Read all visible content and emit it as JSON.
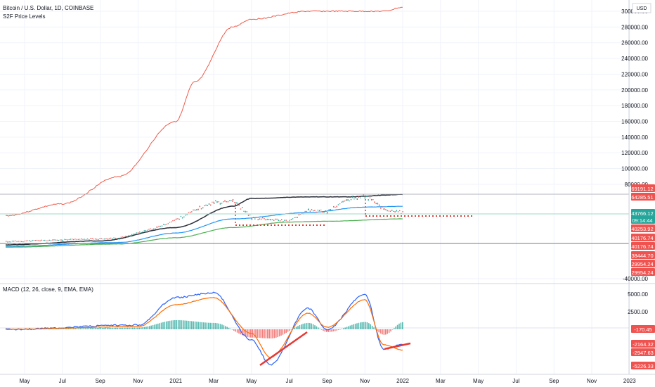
{
  "header": {
    "title": "Bitcoin / U.S. Dollar, 1D, COINBASE",
    "indicator_label": "S2F Price Levels",
    "currency": "USD"
  },
  "macd_header": {
    "label": "MACD (12, 26, close, 9, EMA, EMA)"
  },
  "colors": {
    "s2f": "#f05a4a",
    "black_ma": "#2a2e39",
    "blue_ma": "#2196f3",
    "green_ma": "#4caf50",
    "price_red": "#ef5350",
    "price_green": "#26a69a",
    "macd_line": "#2962ff",
    "signal_line": "#ff6d00",
    "hist_pos": "#26a69a",
    "hist_neg": "#ef5350",
    "grid": "#f0f3fa"
  },
  "chart_data": [
    {
      "type": "line",
      "title": "Bitcoin / U.S. Dollar, 1D, COINBASE",
      "ylabel": "USD",
      "ylim": [
        -40000,
        300000
      ],
      "grid": true,
      "x_ticks": [
        "May",
        "Jul",
        "Sep",
        "Nov",
        "2021",
        "Mar",
        "May",
        "Jul",
        "Sep",
        "Nov",
        "2022",
        "Mar",
        "May",
        "Jul",
        "Sep",
        "Nov",
        "2023"
      ],
      "y_ticks": [
        300000,
        280000,
        260000,
        240000,
        220000,
        200000,
        180000,
        160000,
        140000,
        120000,
        100000,
        80000,
        -40000
      ],
      "price_labels": [
        {
          "value": "69191.12",
          "color": "#ef5350"
        },
        {
          "value": "64285.51",
          "color": "#ef5350"
        },
        {
          "value": "43766.12",
          "color": "#26a69a"
        },
        {
          "value": "09:14:44",
          "color": "#26a69a"
        },
        {
          "value": "40253.92",
          "color": "#ef5350"
        },
        {
          "value": "40176.74",
          "color": "#ef5350"
        },
        {
          "value": "40176.74",
          "color": "#ef5350"
        },
        {
          "value": "38444.70",
          "color": "#ef5350"
        },
        {
          "value": "29954.24",
          "color": "#ef5350"
        },
        {
          "value": "29954.24",
          "color": "#ef5350"
        }
      ],
      "series": [
        {
          "name": "S2F Price Levels",
          "x": [
            "2020-04",
            "2020-07",
            "2020-10",
            "2021-01",
            "2021-02",
            "2021-04",
            "2021-05",
            "2021-08",
            "2021-10",
            "2021-12",
            "2022-01"
          ],
          "values": [
            40000,
            55000,
            90000,
            160000,
            210000,
            280000,
            290000,
            300000,
            300000,
            300000,
            305000
          ]
        },
        {
          "x": [
            "2020-04",
            "2020-09",
            "2021-01",
            "2021-04",
            "2021-05",
            "2021-08",
            "2021-10",
            "2022-01"
          ],
          "values": [
            3000,
            8000,
            25000,
            52000,
            62000,
            64000,
            64000,
            67000
          ]
        },
        {
          "x": [
            "2020-04",
            "2020-10",
            "2021-01",
            "2021-04",
            "2021-08",
            "2021-11",
            "2022-01"
          ],
          "values": [
            1000,
            6000,
            18000,
            36000,
            44000,
            51000,
            52000
          ]
        },
        {
          "x": [
            "2020-04",
            "2020-10",
            "2021-01",
            "2021-04",
            "2021-07",
            "2021-09",
            "2022-01"
          ],
          "values": [
            0,
            4000,
            12000,
            25000,
            32000,
            33000,
            36000
          ]
        },
        {
          "name": "BTC",
          "x": [
            "2020-04",
            "2020-07",
            "2020-10",
            "2020-12",
            "2021-01",
            "2021-02",
            "2021-03",
            "2021-04",
            "2021-05",
            "2021-06",
            "2021-07",
            "2021-08",
            "2021-09",
            "2021-10",
            "2021-11",
            "2021-12",
            "2022-01"
          ],
          "values": [
            7000,
            9200,
            11500,
            25000,
            35000,
            47000,
            57000,
            60000,
            37000,
            35000,
            33000,
            47000,
            45000,
            60000,
            65000,
            48000,
            43766
          ]
        }
      ]
    },
    {
      "type": "bar",
      "title": "MACD (12, 26, close, 9, EMA, EMA)",
      "ylim": [
        -6000,
        6000
      ],
      "y_ticks": [
        5000,
        2500
      ],
      "value_labels": [
        {
          "value": "-170.45",
          "color": "#ef5350"
        },
        {
          "value": "-2164.32",
          "color": "#ef5350"
        },
        {
          "value": "-2947.63",
          "color": "#ef5350"
        },
        {
          "value": "-5226.33",
          "color": "#ef5350"
        }
      ],
      "series": [
        {
          "x": [
            "2020-04",
            "2020-11",
            "2021-01",
            "2021-03",
            "2021-05",
            "2021-06",
            "2021-08",
            "2021-09",
            "2021-11",
            "2021-12",
            "2022-01"
          ],
          "values": [
            0,
            600,
            4500,
            5200,
            -1500,
            -5000,
            3000,
            0,
            5000,
            -2800,
            -2164
          ]
        },
        {
          "x": [
            "2020-04",
            "2020-11",
            "2021-01",
            "2021-03",
            "2021-05",
            "2021-06",
            "2021-08",
            "2021-09",
            "2021-11",
            "2021-12",
            "2022-01"
          ],
          "values": [
            0,
            400,
            3500,
            4500,
            -600,
            -4000,
            2300,
            300,
            4200,
            -2200,
            -2947
          ]
        }
      ]
    }
  ]
}
